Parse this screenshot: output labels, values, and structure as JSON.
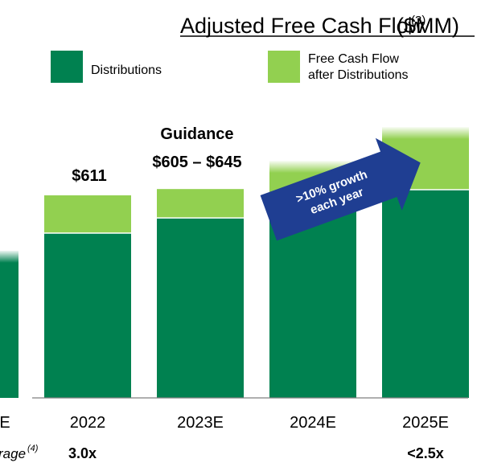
{
  "chart_data": {
    "type": "stacked_bar",
    "title": "Adjusted Free Cash Flow",
    "title_note": "(3)",
    "title_unit": "($MM)",
    "categories": [
      "E",
      "2022",
      "2023E",
      "2024E",
      "2025E"
    ],
    "series": [
      {
        "name": "Distributions",
        "color": "#008150",
        "values": [
          444,
          497,
          543,
          582,
          628
        ]
      },
      {
        "name": "Free Cash Flow after Distributions",
        "name_lines": [
          "Free Cash Flow",
          "after Distributions"
        ],
        "color": "#92d050",
        "values": [
          null,
          114,
          87,
          133,
          189
        ]
      }
    ],
    "faded": [
      true,
      false,
      false,
      true,
      true
    ],
    "annotations": {
      "total_2022": "$611",
      "guidance": "Guidance",
      "guidance_range": "$605 – $645",
      "arrow_lines": [
        ">10% growth",
        "each year"
      ]
    },
    "leverage": {
      "label": "rage",
      "note": "(4)",
      "values": [
        null,
        "3.0x",
        null,
        null,
        "<2.5x"
      ]
    }
  }
}
